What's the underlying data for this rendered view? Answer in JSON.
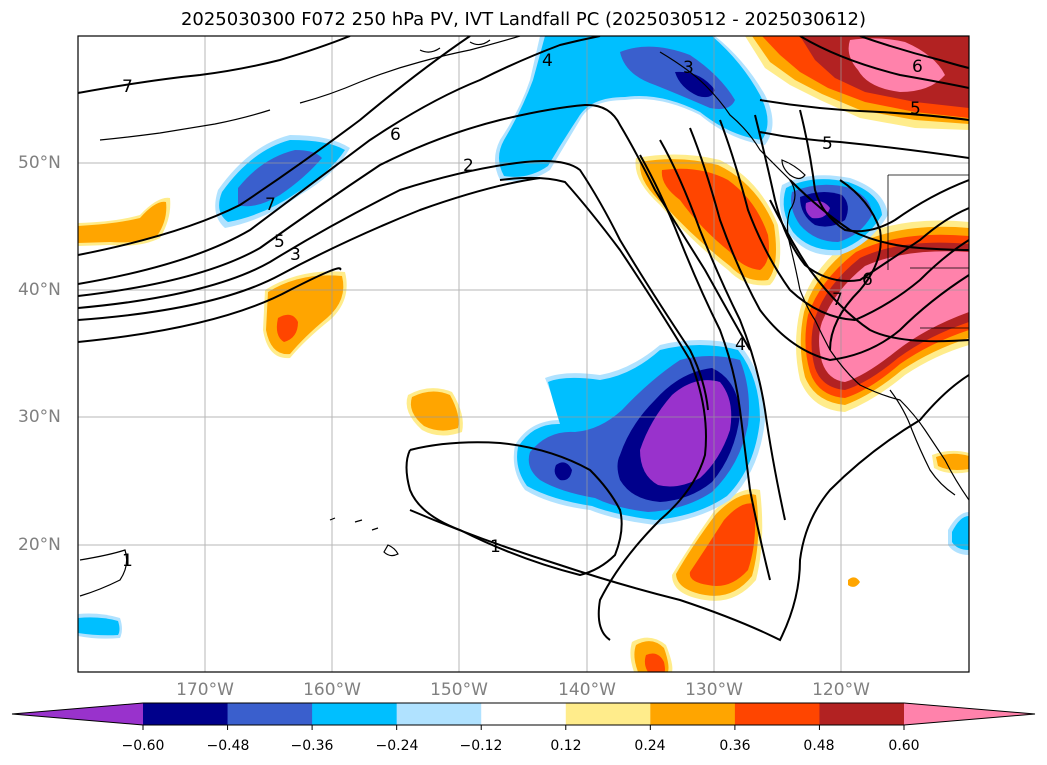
{
  "title": "2025030300 F072 250 hPa PV, IVT Landfall PC (2025030512 - 2025030612)",
  "map": {
    "lon_labels": [
      "170°W",
      "160°W",
      "150°W",
      "140°W",
      "130°W",
      "120°W"
    ],
    "lat_labels": [
      "50°N",
      "40°N",
      "30°N",
      "20°N"
    ],
    "contour_labels": [
      "7",
      "6",
      "2",
      "4",
      "3",
      "5",
      "7",
      "5",
      "3",
      "1",
      "1",
      "6",
      "5",
      "6",
      "7",
      "4"
    ]
  },
  "colorbar": {
    "ticks": [
      "−0.60",
      "−0.48",
      "−0.36",
      "−0.24",
      "−0.12",
      "0.12",
      "0.24",
      "0.36",
      "0.48",
      "0.60"
    ],
    "colors": [
      "#9932CC",
      "#00008B",
      "#3A5FCD",
      "#00BFFF",
      "#B0E2FF",
      "#FFFFFF",
      "#FFEC8B",
      "#FFA500",
      "#FF4500",
      "#B22222",
      "#FF82AB"
    ]
  }
}
